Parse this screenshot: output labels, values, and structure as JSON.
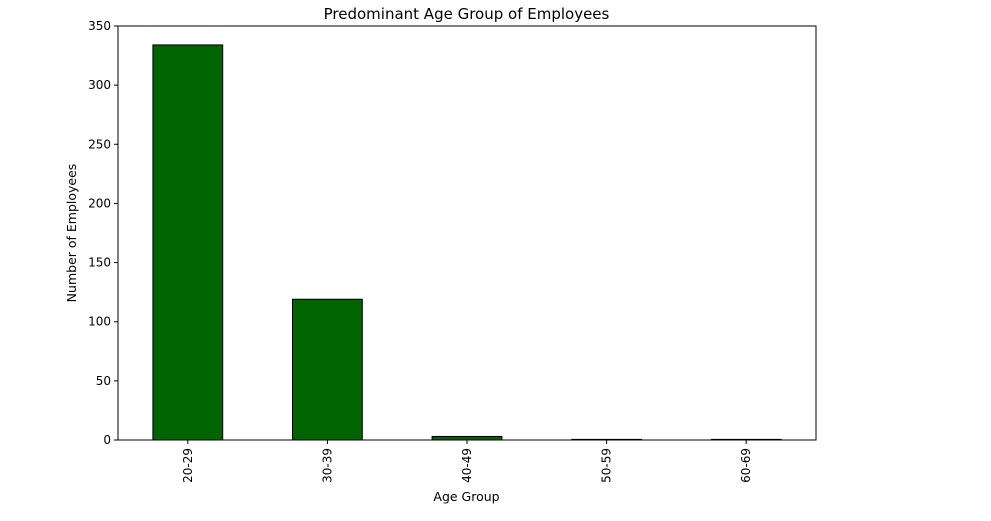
{
  "colors": {
    "bar_fill": "#006400",
    "bar_edge": "#000000",
    "axis": "#000000",
    "background": "#ffffff"
  },
  "chart_data": {
    "type": "bar",
    "title": "Predominant Age Group of Employees",
    "xlabel": "Age Group",
    "ylabel": "Number of Employees",
    "categories": [
      "20-29",
      "30-39",
      "40-49",
      "50-59",
      "60-69"
    ],
    "values": [
      334,
      119,
      3,
      0,
      0
    ],
    "ylim": [
      0,
      350
    ],
    "yticks": [
      0,
      50,
      100,
      150,
      200,
      250,
      300,
      350
    ],
    "ytick_labels": [
      "0",
      "50",
      "100",
      "150",
      "200",
      "250",
      "300",
      "350"
    ],
    "xtick_rotation": "vertical",
    "grid": false,
    "legend": "none"
  }
}
